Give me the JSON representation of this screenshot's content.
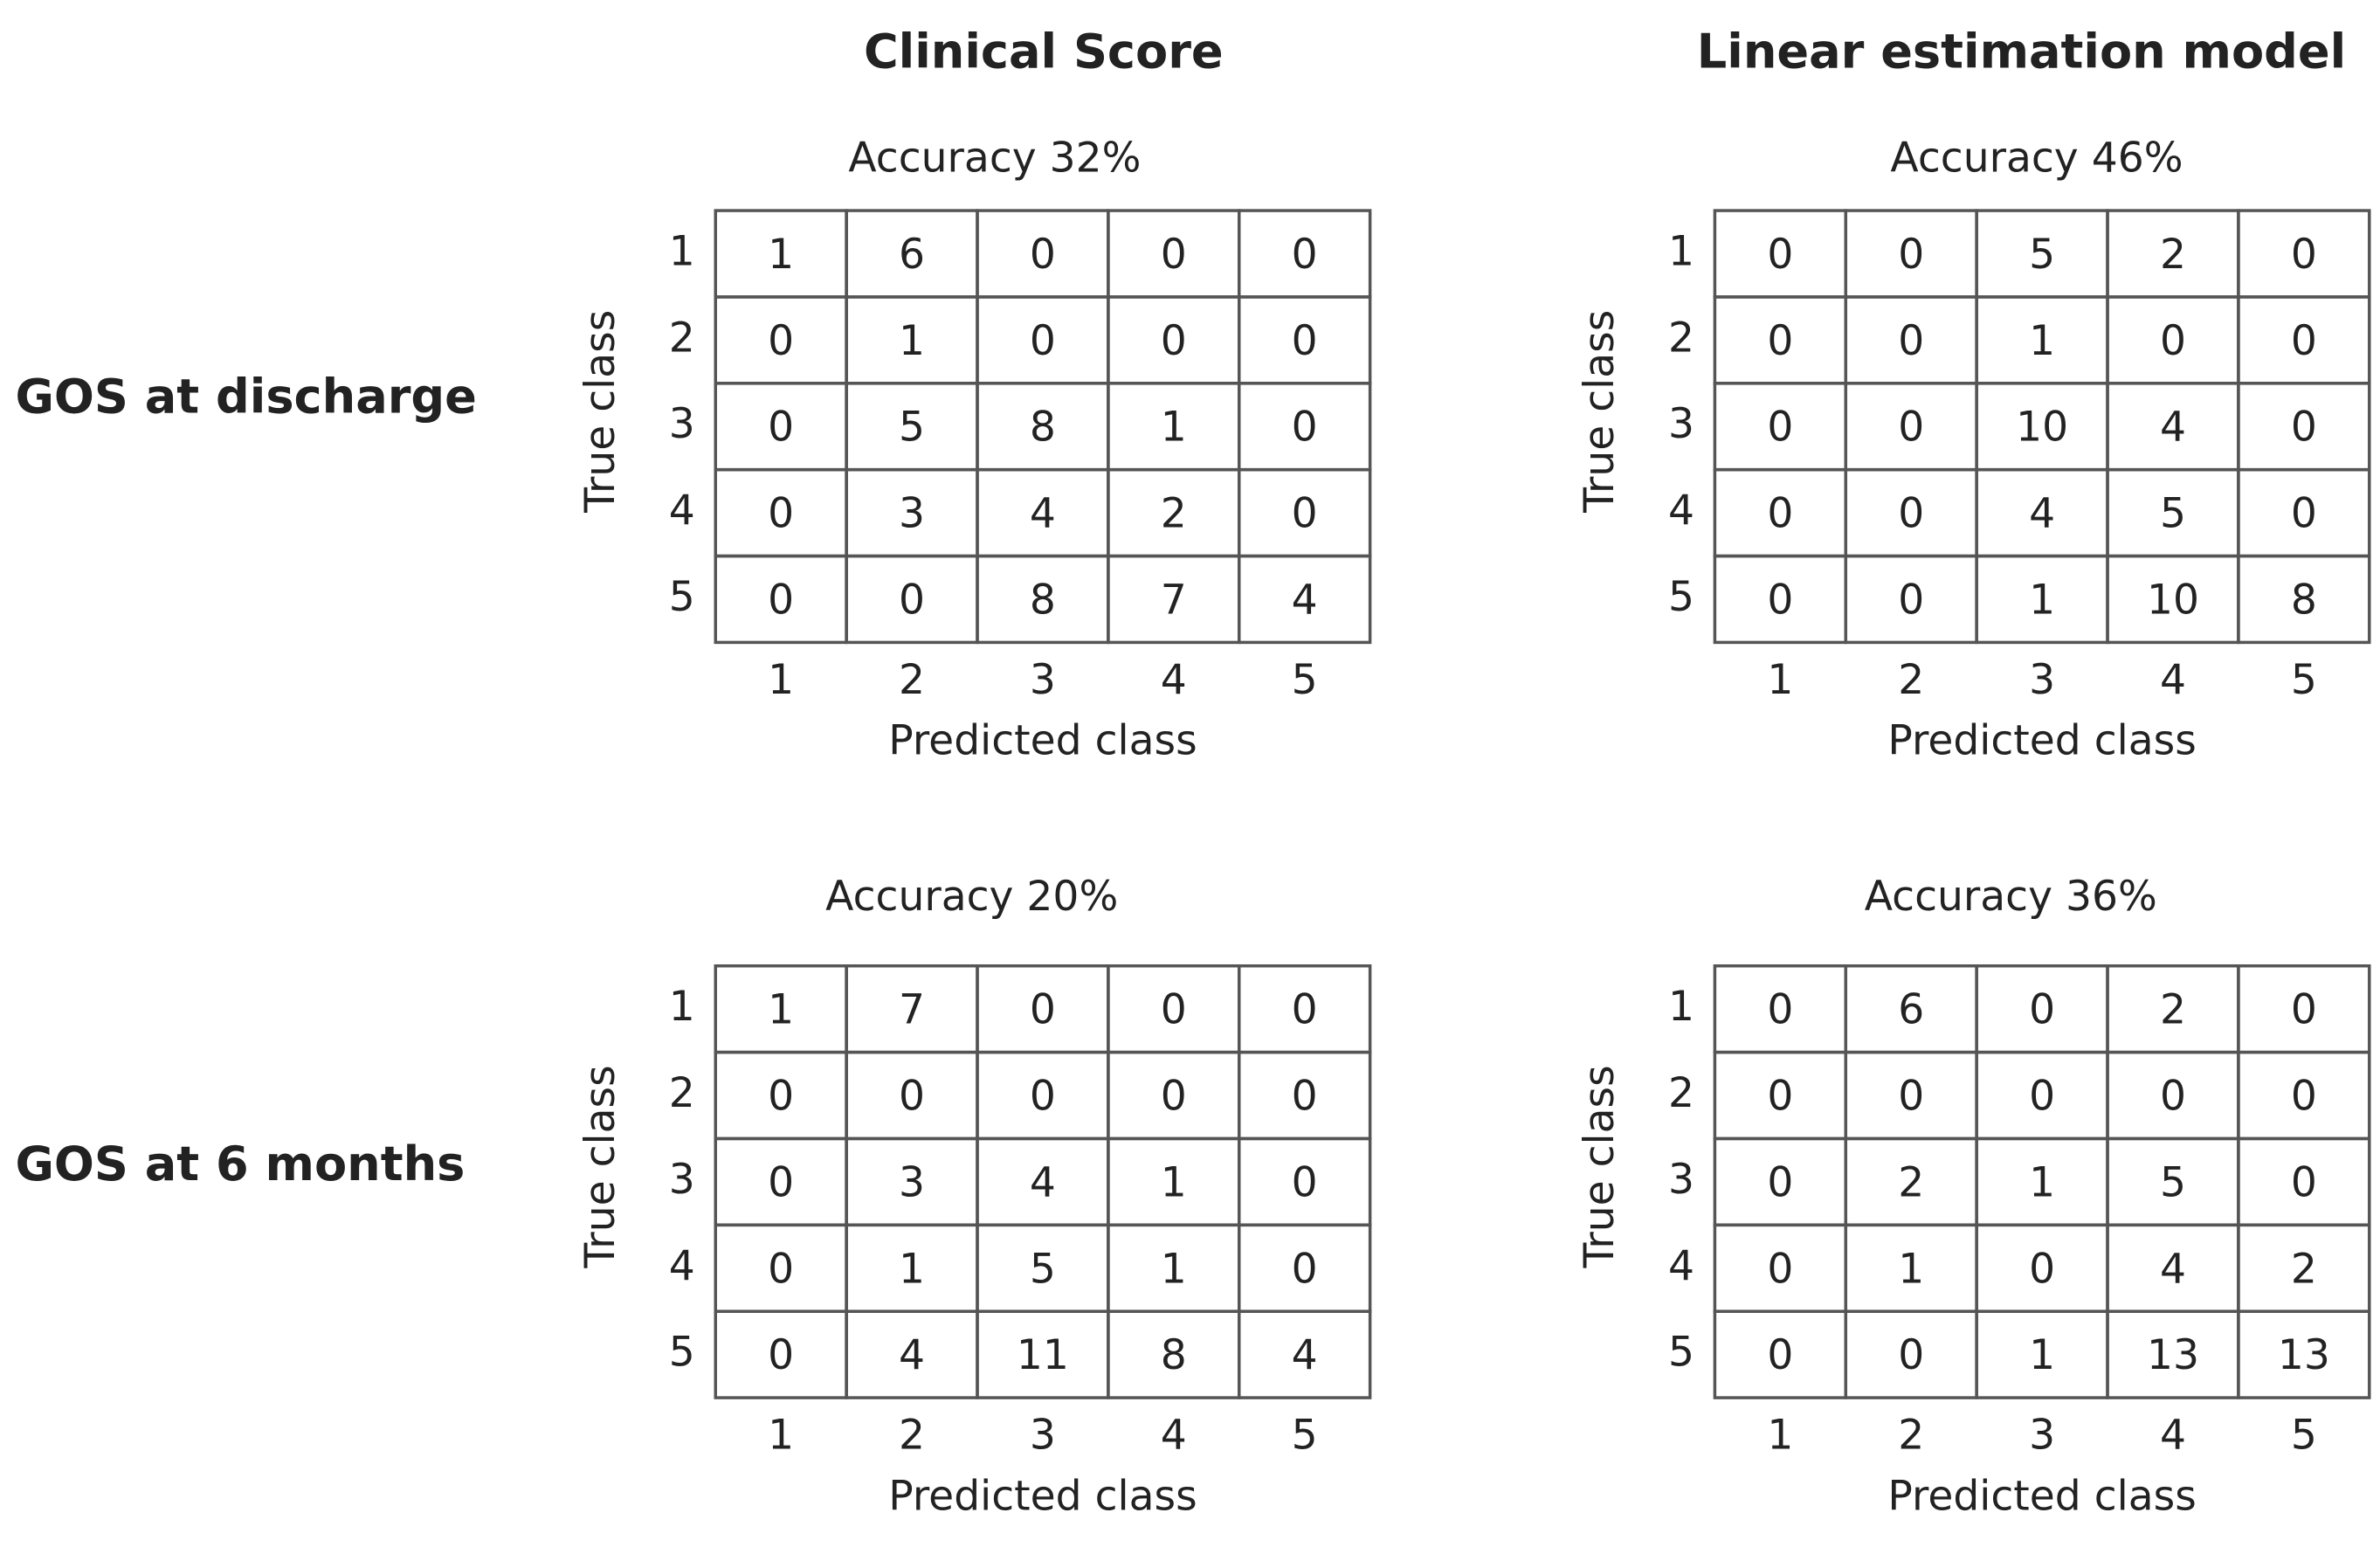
{
  "columns": [
    "Clinical Score",
    "Linear estimation model"
  ],
  "rows": [
    "GOS at discharge",
    "GOS at 6 months"
  ],
  "matrices": [
    {
      "accuracy": "Accuracy 32%",
      "true_label": "True class",
      "predicted_label": "Predicted class",
      "row_labels": [
        1,
        2,
        3,
        4,
        5
      ],
      "col_labels": [
        1,
        2,
        3,
        4,
        5
      ],
      "cells": [
        [
          1,
          6,
          0,
          0,
          0
        ],
        [
          0,
          1,
          0,
          0,
          0
        ],
        [
          0,
          5,
          8,
          1,
          0
        ],
        [
          0,
          3,
          4,
          2,
          0
        ],
        [
          0,
          0,
          8,
          7,
          4
        ]
      ]
    },
    {
      "accuracy": "Accuracy 46%",
      "true_label": "True class",
      "predicted_label": "Predicted class",
      "row_labels": [
        1,
        2,
        3,
        4,
        5
      ],
      "col_labels": [
        1,
        2,
        3,
        4,
        5
      ],
      "cells": [
        [
          0,
          0,
          5,
          2,
          0
        ],
        [
          0,
          0,
          1,
          0,
          0
        ],
        [
          0,
          0,
          10,
          4,
          0
        ],
        [
          0,
          0,
          4,
          5,
          0
        ],
        [
          0,
          0,
          1,
          10,
          8
        ]
      ]
    },
    {
      "accuracy": "Accuracy 20%",
      "true_label": "True class",
      "predicted_label": "Predicted class",
      "row_labels": [
        1,
        2,
        3,
        4,
        5
      ],
      "col_labels": [
        1,
        2,
        3,
        4,
        5
      ],
      "cells": [
        [
          1,
          7,
          0,
          0,
          0
        ],
        [
          0,
          0,
          0,
          0,
          0
        ],
        [
          0,
          3,
          4,
          1,
          0
        ],
        [
          0,
          1,
          5,
          1,
          0
        ],
        [
          0,
          4,
          11,
          8,
          4
        ]
      ]
    },
    {
      "accuracy": "Accuracy 36%",
      "true_label": "True class",
      "predicted_label": "Predicted class",
      "row_labels": [
        1,
        2,
        3,
        4,
        5
      ],
      "col_labels": [
        1,
        2,
        3,
        4,
        5
      ],
      "cells": [
        [
          0,
          6,
          0,
          2,
          0
        ],
        [
          0,
          0,
          0,
          0,
          0
        ],
        [
          0,
          2,
          1,
          5,
          0
        ],
        [
          0,
          1,
          0,
          4,
          2
        ],
        [
          0,
          0,
          1,
          13,
          13
        ]
      ]
    }
  ]
}
